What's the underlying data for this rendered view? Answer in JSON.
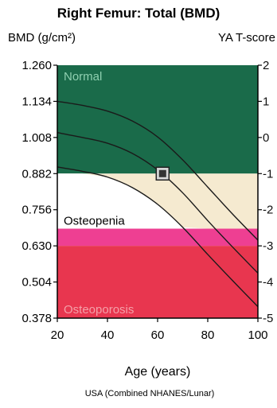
{
  "chart_data": {
    "type": "area",
    "title": "Right Femur: Total (BMD)",
    "ylabel": "BMD (g/cm²)",
    "y2label": "YA T-score",
    "xlabel": "Age (years)",
    "footnote": "USA (Combined NHANES/Lunar)",
    "xlim": [
      20,
      100
    ],
    "ylim": [
      0.378,
      1.26
    ],
    "x_ticks": [
      "20",
      "40",
      "60",
      "80",
      "100"
    ],
    "x_tick_values": [
      20,
      40,
      60,
      80,
      100
    ],
    "y_ticks": [
      "1.260",
      "1.134",
      "1.008",
      "0.882",
      "0.756",
      "0.630",
      "0.504",
      "0.378"
    ],
    "y_tick_values": [
      1.26,
      1.134,
      1.008,
      0.882,
      0.756,
      0.63,
      0.504,
      0.378
    ],
    "t_ticks": [
      "2",
      "1",
      "0",
      "-1",
      "-2",
      "-3",
      "-4",
      "-5"
    ],
    "t_tick_bmd": [
      1.26,
      1.134,
      1.008,
      0.882,
      0.756,
      0.63,
      0.504,
      0.378
    ],
    "zones": [
      {
        "label": "Normal",
        "from": 0.882,
        "to": 1.26,
        "color": "#1a6b4a"
      },
      {
        "label": "",
        "from": 0.69,
        "to": 0.882,
        "color": "#f5ead0"
      },
      {
        "label": "Osteopenia",
        "from": 0.69,
        "to": 0.882,
        "color": "#ffffff"
      },
      {
        "label": "",
        "from": 0.63,
        "to": 0.69,
        "color": "#ee3f92"
      },
      {
        "label": "Osteoporosis",
        "from": 0.378,
        "to": 0.63,
        "color": "#e8364f"
      }
    ],
    "series": [
      {
        "x": [
          20,
          30,
          40,
          50,
          60,
          70,
          80,
          90,
          100
        ],
        "y": [
          1.134,
          1.12,
          1.1,
          1.065,
          1.01,
          0.93,
          0.835,
          0.74,
          0.65
        ]
      },
      {
        "x": [
          20,
          30,
          40,
          50,
          60,
          70,
          80,
          90,
          100
        ],
        "y": [
          1.025,
          1.008,
          0.988,
          0.952,
          0.895,
          0.815,
          0.718,
          0.625,
          0.535
        ]
      },
      {
        "x": [
          20,
          30,
          40,
          50,
          60,
          70,
          80,
          90,
          100
        ],
        "y": [
          0.905,
          0.89,
          0.87,
          0.833,
          0.775,
          0.695,
          0.6,
          0.508,
          0.418
        ]
      }
    ],
    "patient": {
      "x": 62,
      "y": 0.882
    },
    "grid": false,
    "legend": "none"
  }
}
